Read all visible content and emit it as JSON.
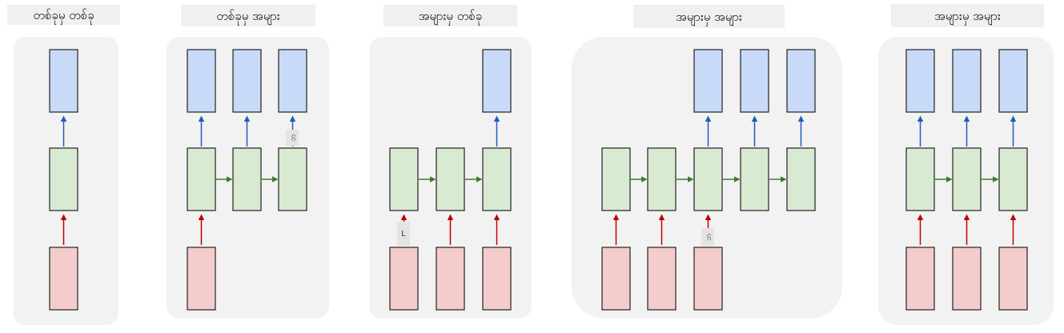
{
  "colors": {
    "output_fill": "#c9daf8",
    "hidden_fill": "#d9ead3",
    "input_fill": "#f4cccc",
    "output_arrow": "#1f5bbd",
    "recurrent_arrow": "#3a7d2a",
    "input_arrow": "#c00000",
    "panel_bg": "#f2f2f2"
  },
  "panels": [
    {
      "title": "တစ်ခုမှ တစ်ခု"
    },
    {
      "title": "တစ်ခုမှ အများ"
    },
    {
      "title": "အများမှ တစ်ခု"
    },
    {
      "title": "အများမှ အများ"
    },
    {
      "title": "အများမှ အများ"
    }
  ],
  "stray_labels": [
    {
      "text": "ဘ"
    },
    {
      "text": "L"
    },
    {
      "text": "ဘ"
    }
  ]
}
